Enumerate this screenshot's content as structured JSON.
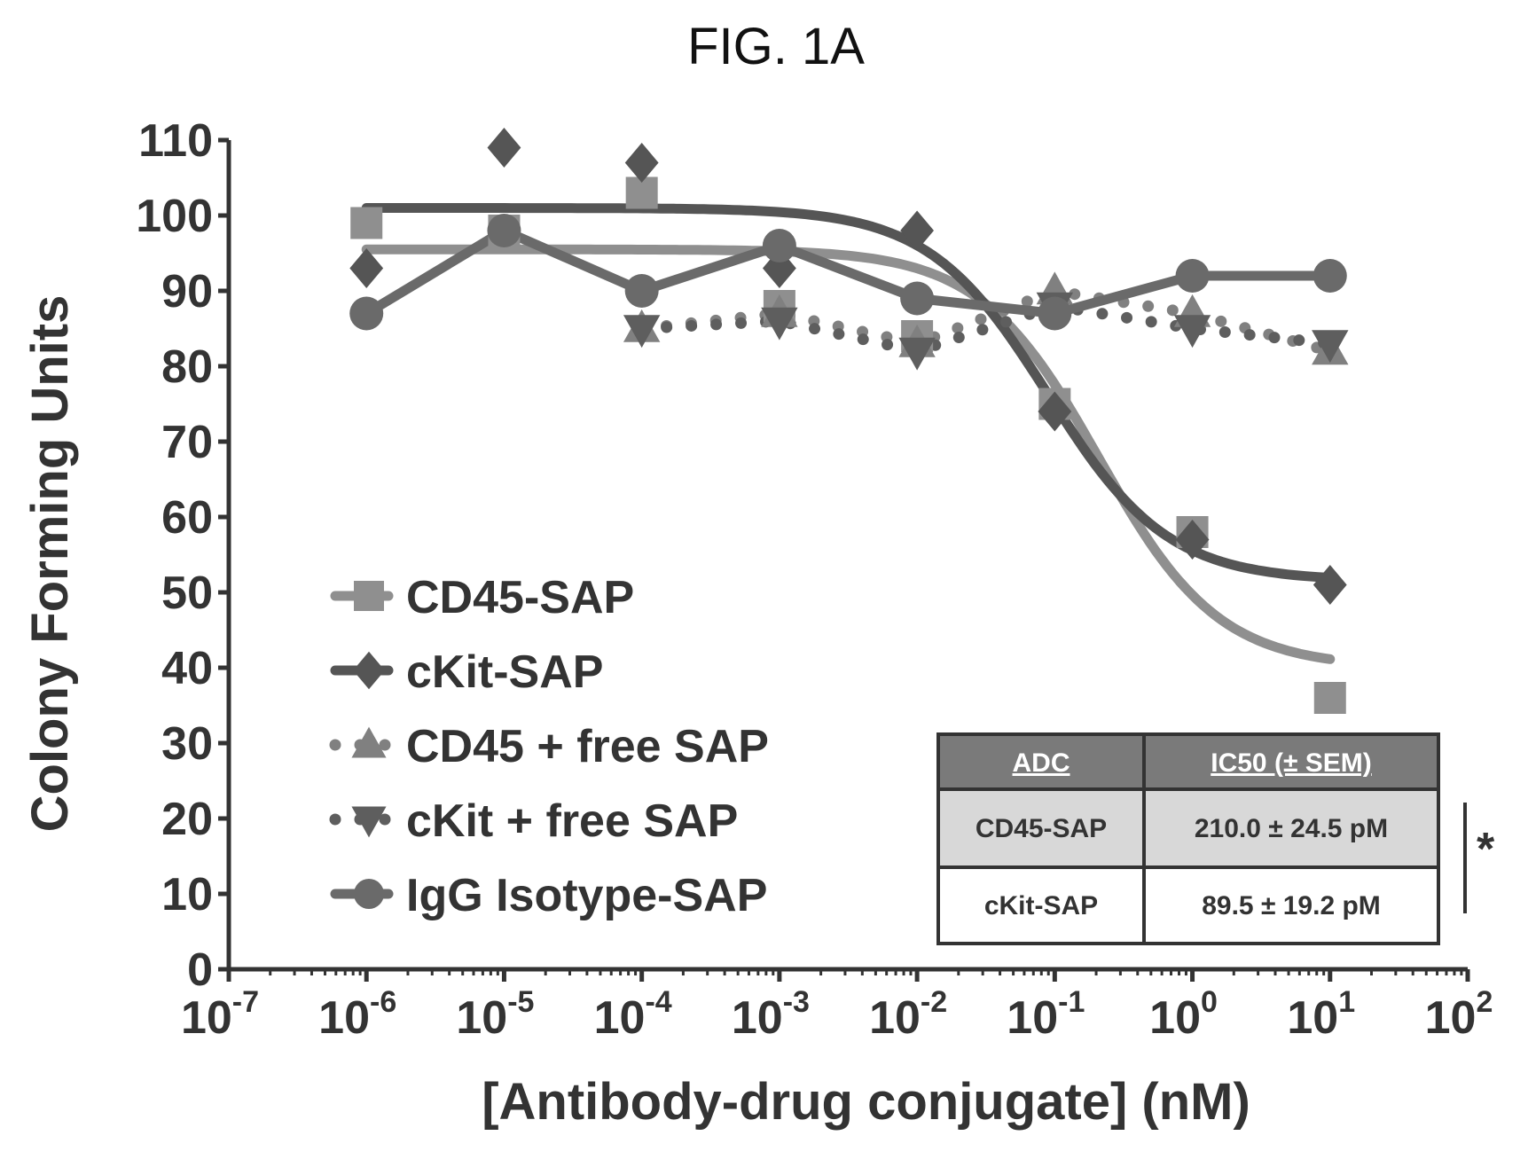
{
  "figure_label": "FIG. 1A",
  "colors": {
    "axis": "#333333",
    "cd45_sap": "#8f8f8f",
    "ckit_sap": "#555555",
    "cd45_free": "#808080",
    "ckit_free": "#5e5e5e",
    "igg_sap": "#6a6a6a",
    "table_header": "#7a7a7a",
    "table_body": "#d8d8d8"
  },
  "chart_data": {
    "type": "scatter",
    "title": "",
    "xlabel": "[Antibody-drug conjugate] (nM)",
    "ylabel": "Colony Forming Units",
    "x_scale": "log",
    "xlim": [
      1e-07,
      100
    ],
    "ylim": [
      0,
      110
    ],
    "x_ticks": [
      {
        "base": "10",
        "exp": "-7",
        "value": 1e-07
      },
      {
        "base": "10",
        "exp": "-6",
        "value": 1e-06
      },
      {
        "base": "10",
        "exp": "-5",
        "value": 1e-05
      },
      {
        "base": "10",
        "exp": "-4",
        "value": 0.0001
      },
      {
        "base": "10",
        "exp": "-3",
        "value": 0.001
      },
      {
        "base": "10",
        "exp": "-2",
        "value": 0.01
      },
      {
        "base": "10",
        "exp": "-1",
        "value": 0.1
      },
      {
        "base": "10",
        "exp": "0",
        "value": 1
      },
      {
        "base": "10",
        "exp": "1",
        "value": 10
      },
      {
        "base": "10",
        "exp": "2",
        "value": 100
      }
    ],
    "y_ticks": [
      0,
      10,
      20,
      30,
      40,
      50,
      60,
      70,
      80,
      90,
      100,
      110
    ],
    "legend_position": "left-middle",
    "series": [
      {
        "name": "CD45-SAP",
        "key": "cd45_sap",
        "marker": "square",
        "line": "fit",
        "x": [
          1e-06,
          1e-05,
          0.0001,
          0.001,
          0.01,
          0.1,
          1,
          10
        ],
        "y": [
          99,
          98,
          103,
          88,
          84,
          75,
          58,
          36
        ],
        "fit": {
          "top": 95.5,
          "bottom": 40,
          "ic50": 0.21,
          "hill": 1.0
        }
      },
      {
        "name": "cKit-SAP",
        "key": "ckit_sap",
        "marker": "diamond",
        "line": "fit",
        "x": [
          1e-06,
          1e-05,
          0.0001,
          0.001,
          0.01,
          0.1,
          1,
          10
        ],
        "y": [
          93,
          109,
          107,
          93,
          98,
          74,
          57,
          51
        ],
        "fit": {
          "top": 101,
          "bottom": 51.5,
          "ic50": 0.0895,
          "hill": 1.0
        }
      },
      {
        "name": "CD45 + free SAP",
        "key": "cd45_free",
        "marker": "triangle-up",
        "line": "dotted",
        "x": [
          0.0001,
          0.001,
          0.01,
          0.1,
          1,
          10
        ],
        "y": [
          85,
          87,
          83,
          90,
          87,
          82
        ]
      },
      {
        "name": "cKit + free SAP",
        "key": "ckit_free",
        "marker": "triangle-down",
        "line": "dotted",
        "x": [
          0.0001,
          0.001,
          0.01,
          0.1,
          1,
          10
        ],
        "y": [
          85,
          86,
          82,
          88,
          85,
          83
        ]
      },
      {
        "name": "IgG Isotype-SAP",
        "key": "igg_sap",
        "marker": "circle",
        "line": "solid",
        "x": [
          1e-06,
          1e-05,
          0.0001,
          0.001,
          0.01,
          0.1,
          1,
          10
        ],
        "y": [
          87,
          98,
          90,
          96,
          89,
          87,
          92,
          92
        ]
      }
    ]
  },
  "table": {
    "headers": [
      "ADC",
      "IC50 (± SEM)"
    ],
    "rows": [
      [
        "CD45-SAP",
        "210.0 ± 24.5 pM"
      ],
      [
        "cKit-SAP",
        "89.5 ± 19.2 pM"
      ]
    ],
    "significance": "*"
  }
}
